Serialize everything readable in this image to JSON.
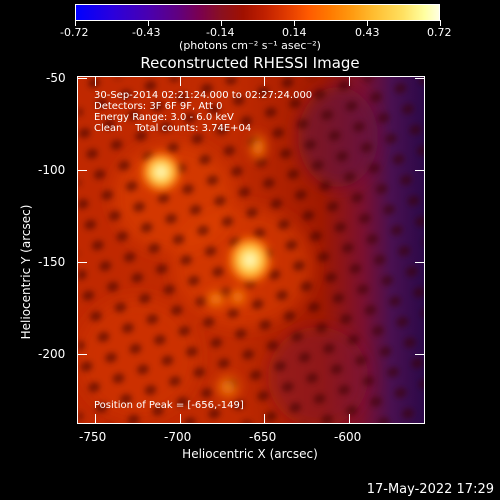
{
  "colorbar": {
    "ticks": [
      "-0.72",
      "-0.43",
      "-0.14",
      "0.14",
      "0.43",
      "0.72"
    ],
    "units": "(photons cm⁻² s⁻¹ asec⁻²)"
  },
  "title": "Reconstructed RHESSI Image",
  "info": {
    "time": "30-Sep-2014 02:21:24.000 to 02:27:24.000",
    "detectors": "Detectors: 3F 6F 9F, Att 0",
    "energy": "Energy Range: 3.0 - 6.0 keV",
    "clean": "Clean    Total counts: 3.74E+04",
    "peak": "Position of Peak = [-656,-149]"
  },
  "axes": {
    "xlabel": "Heliocentric X (arcsec)",
    "ylabel": "Heliocentric Y (arcsec)",
    "xticks": [
      "-750",
      "-700",
      "-650",
      "-600"
    ],
    "yticks": [
      "-50",
      "-100",
      "-150",
      "-200"
    ]
  },
  "timestamp": "17-May-2022 17:29"
}
